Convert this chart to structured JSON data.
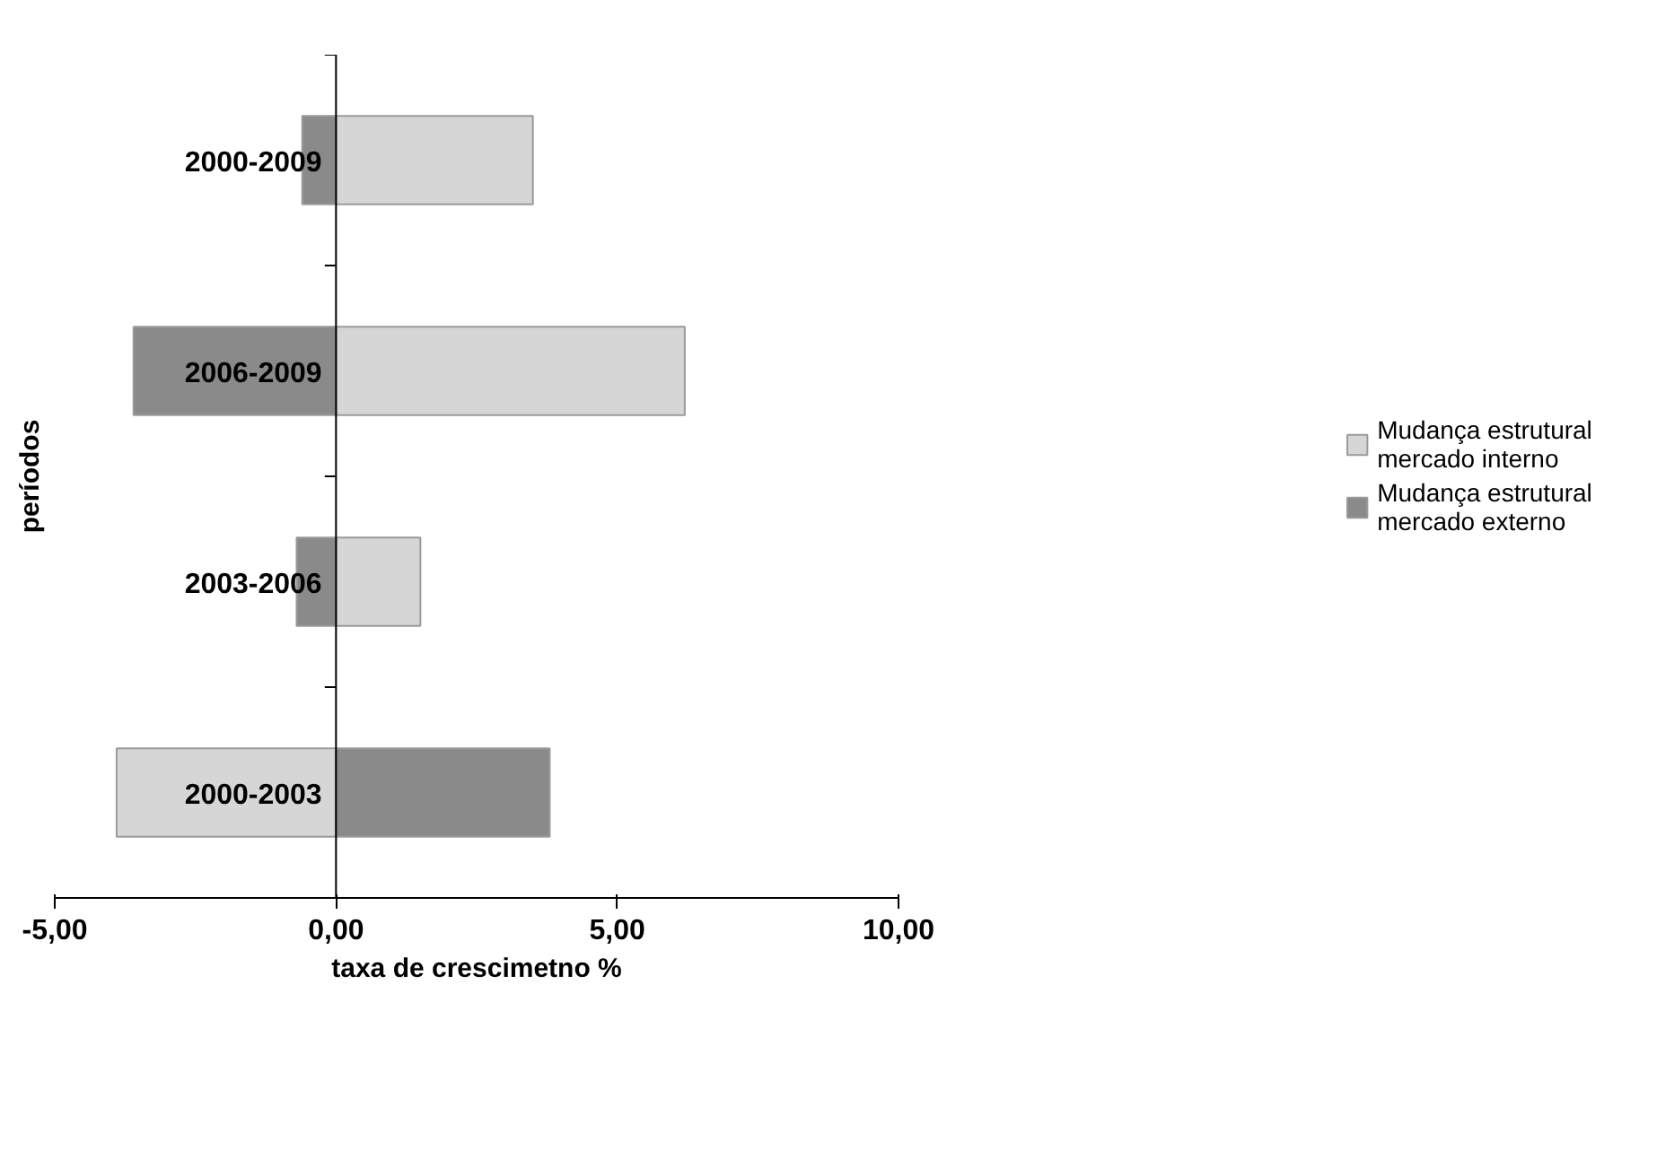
{
  "chart_data": {
    "type": "bar",
    "orientation": "horizontal",
    "stacked": true,
    "xlabel": "taxa de crescimetno %",
    "ylabel": "períodos",
    "categories": [
      "2000-2009",
      "2006-2009",
      "2003-2006",
      "2000-2003"
    ],
    "series": [
      {
        "name": "Mudança estrutural mercado interno",
        "color": "#d6d6d6",
        "values": [
          3.5,
          6.2,
          1.5,
          -3.9
        ]
      },
      {
        "name": "Mudança estrutural mercado externo",
        "color": "#8a8a8a",
        "values": [
          -0.6,
          -3.6,
          -0.7,
          3.8
        ]
      }
    ],
    "xlim": [
      -5,
      10
    ],
    "xticks": [
      {
        "value": -5,
        "label": "-5,00"
      },
      {
        "value": 0,
        "label": "0,00"
      },
      {
        "value": 5,
        "label": "5,00"
      },
      {
        "value": 10,
        "label": "10,00"
      }
    ],
    "grid": false,
    "legend": "right"
  }
}
